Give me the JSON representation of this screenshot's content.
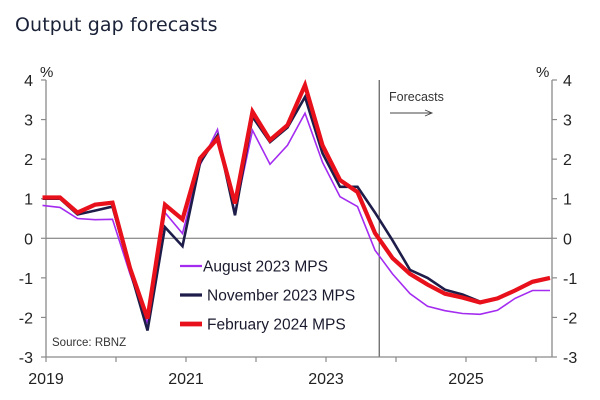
{
  "chart_data": {
    "type": "line",
    "title": "Output gap forecasts",
    "xlabel": "",
    "ylabel": "%",
    "ylim": [
      -3,
      4
    ],
    "xlim": [
      2019,
      2026.22
    ],
    "y_ticks": [
      4,
      3,
      2,
      1,
      0,
      -1,
      -2,
      -3
    ],
    "x_ticks": [
      2019,
      2020,
      2021,
      2022,
      2023,
      2024,
      2025,
      2026
    ],
    "x_tick_labels": [
      {
        "value": 2019,
        "label": "2019"
      },
      {
        "value": 2021,
        "label": "2021"
      },
      {
        "value": 2023,
        "label": "2023"
      },
      {
        "value": 2025,
        "label": "2025"
      }
    ],
    "left_unit": "%",
    "right_unit": "%",
    "x_start": 2018.95,
    "x_step": 0.25,
    "forecast_start": 2023.76,
    "forecast_label": "Forecasts",
    "source": "Source: RBNZ",
    "legend_position": "bottom-center",
    "series": [
      {
        "name": "August 2023 MPS",
        "color": "#a42bf0",
        "width": "thin",
        "values": [
          0.83,
          0.78,
          0.5,
          0.47,
          0.48,
          -0.9,
          -2.15,
          0.65,
          0.12,
          1.85,
          2.75,
          0.65,
          2.73,
          1.87,
          2.35,
          3.16,
          1.92,
          1.05,
          0.8,
          -0.3,
          -0.9,
          -1.4,
          -1.72,
          -1.83,
          -1.9,
          -1.92,
          -1.82,
          -1.52,
          -1.32,
          -1.32
        ]
      },
      {
        "name": "November 2023 MPS",
        "color": "#1e1d4a",
        "width": "medium",
        "values": [
          1.0,
          1.0,
          0.6,
          0.7,
          0.8,
          -0.8,
          -2.33,
          0.28,
          -0.2,
          1.9,
          2.6,
          0.58,
          3.07,
          2.43,
          2.8,
          3.57,
          2.15,
          1.3,
          1.3,
          0.65,
          -0.05,
          -0.8,
          -1.0,
          -1.3,
          -1.42,
          -1.6
        ]
      },
      {
        "name": "February 2024 MPS",
        "color": "#e8101a",
        "width": "thick",
        "values": [
          1.03,
          1.03,
          0.65,
          0.85,
          0.9,
          -0.75,
          -2.03,
          0.85,
          0.48,
          2.02,
          2.52,
          0.88,
          3.2,
          2.48,
          2.86,
          3.87,
          2.35,
          1.47,
          1.17,
          0.13,
          -0.5,
          -0.9,
          -1.17,
          -1.4,
          -1.5,
          -1.62,
          -1.52,
          -1.32,
          -1.1,
          -1.0
        ]
      }
    ]
  }
}
